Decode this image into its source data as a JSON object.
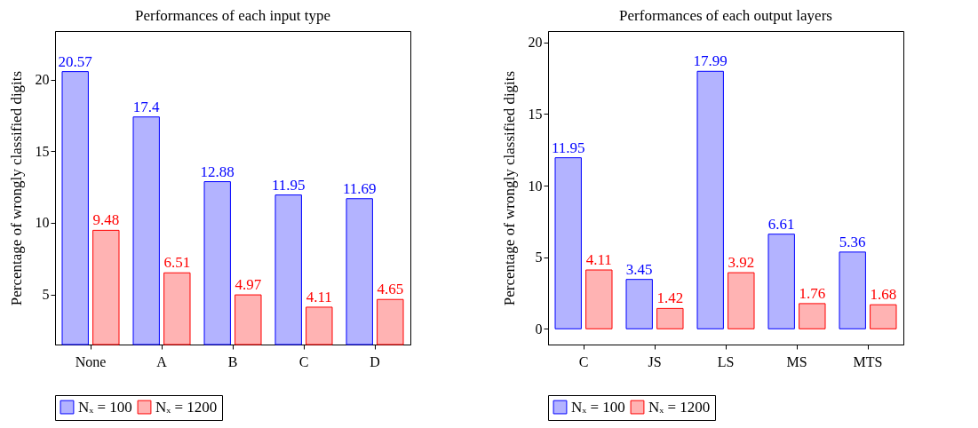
{
  "chart_data": [
    {
      "type": "bar",
      "title": "Performances of each input type",
      "ylabel": "Percentage of wrongly classified digits",
      "categories": [
        "None",
        "A",
        "B",
        "C",
        "D"
      ],
      "series": [
        {
          "name": "Nₓ = 100",
          "color": "#b3b3ff",
          "values": [
            20.57,
            17.4,
            12.88,
            11.95,
            11.69
          ]
        },
        {
          "name": "Nₓ = 1200",
          "color": "#ffb3b3",
          "values": [
            9.48,
            6.51,
            4.97,
            4.11,
            4.65
          ]
        }
      ],
      "ylim": [
        1.5,
        23.4
      ],
      "yticks": [
        5,
        10,
        15,
        20
      ],
      "data_labels": true,
      "legend": "bottom",
      "grid": false
    },
    {
      "type": "bar",
      "title": "Performances of each output layers",
      "ylabel": "Percentage of wrongly classified digits",
      "categories": [
        "C",
        "JS",
        "LS",
        "MS",
        "MTS"
      ],
      "series": [
        {
          "name": "Nₓ = 100",
          "color": "#b3b3ff",
          "values": [
            11.95,
            3.45,
            17.99,
            6.61,
            5.36
          ]
        },
        {
          "name": "Nₓ = 1200",
          "color": "#ffb3b3",
          "values": [
            4.11,
            1.42,
            3.92,
            1.76,
            1.68
          ]
        }
      ],
      "ylim": [
        -1.1,
        20.8
      ],
      "yticks": [
        0,
        5,
        10,
        15,
        20
      ],
      "data_labels": true,
      "legend": "bottom",
      "grid": false
    }
  ]
}
